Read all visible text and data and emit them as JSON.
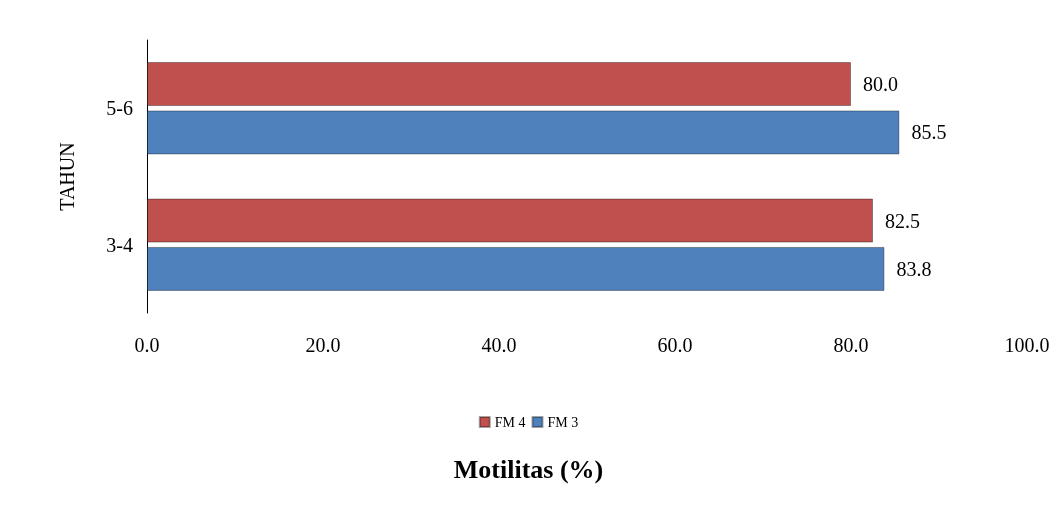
{
  "chart_data": {
    "type": "bar",
    "orientation": "horizontal",
    "xlabel": "Motilitas (%)",
    "ylabel": "TAHUN",
    "categories": [
      "5-6",
      "3-4"
    ],
    "series": [
      {
        "name": "FM 4",
        "color": "#c0504d",
        "values": [
          80.0,
          82.5
        ],
        "value_labels": [
          "80.0",
          "82.5"
        ]
      },
      {
        "name": "FM 3",
        "color": "#4f81bd",
        "values": [
          85.5,
          83.8
        ],
        "value_labels": [
          "85.5",
          "83.8"
        ]
      }
    ],
    "xlim": [
      0,
      100
    ],
    "xticks": [
      {
        "value": 0,
        "label": "0.0"
      },
      {
        "value": 20,
        "label": "20.0"
      },
      {
        "value": 40,
        "label": "40.0"
      },
      {
        "value": 60,
        "label": "60.0"
      },
      {
        "value": 80,
        "label": "80.0"
      },
      {
        "value": 100,
        "label": "100.0"
      }
    ],
    "grid": false,
    "legend": "bottom"
  }
}
